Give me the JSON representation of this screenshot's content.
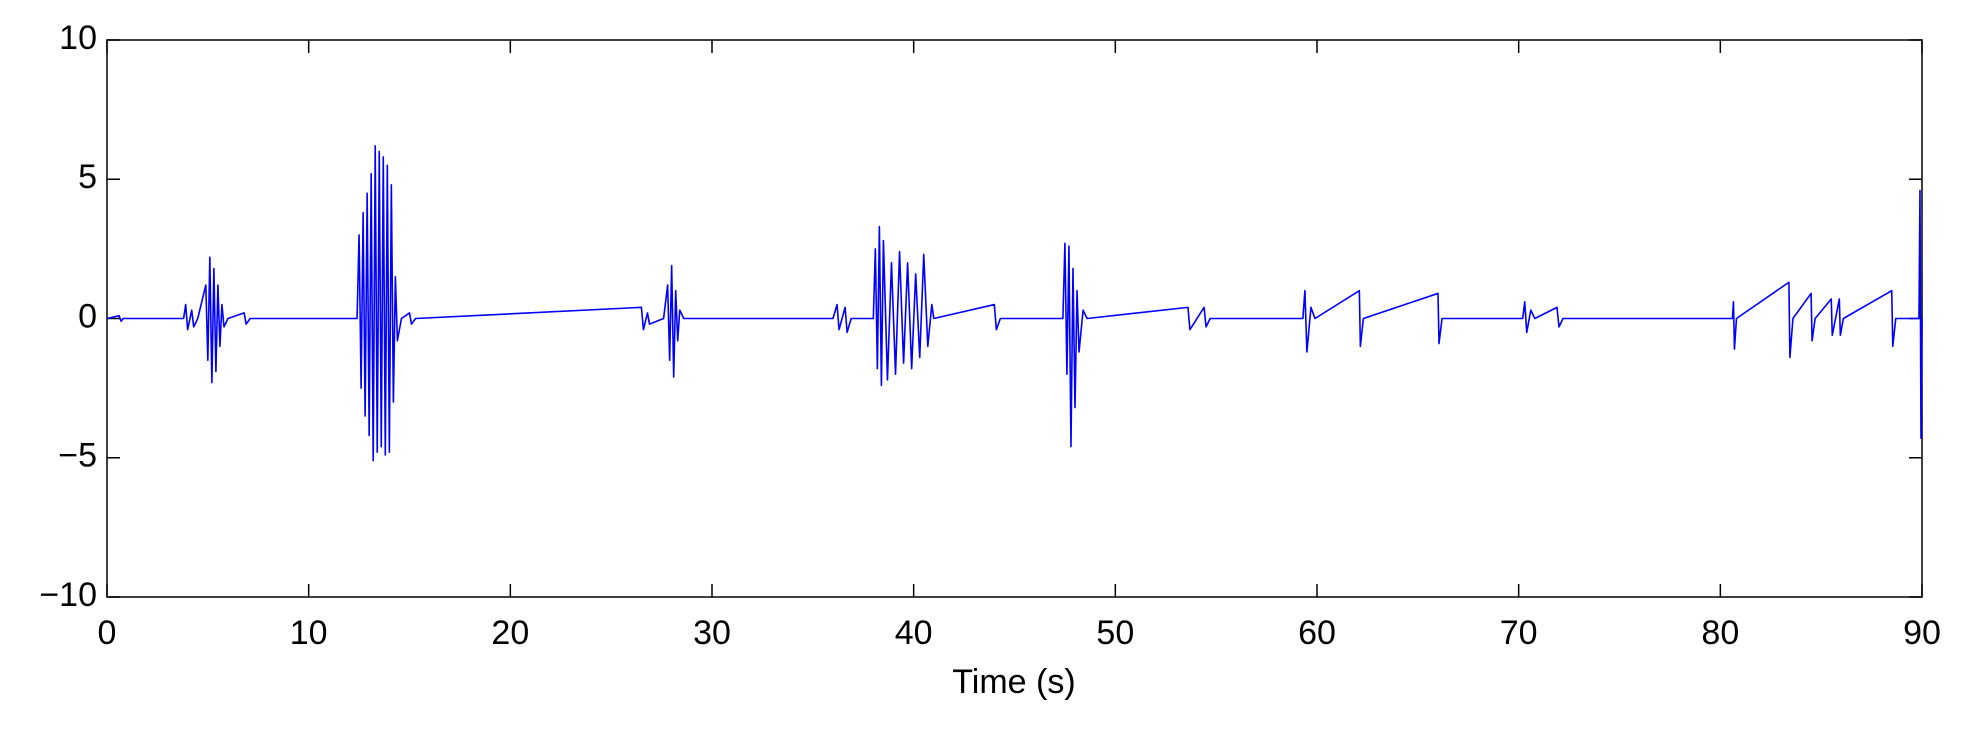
{
  "chart_data": {
    "type": "line",
    "x_label": "Time (s)",
    "color": "#0000ff",
    "xlim": [
      0,
      90
    ],
    "xticks": [
      0,
      10,
      20,
      30,
      40,
      50,
      60,
      70,
      80,
      90
    ],
    "ylim": [
      -10,
      10
    ],
    "yticks": [
      {
        "value": -10,
        "label": "−10"
      },
      {
        "value": -5,
        "label": "−5"
      },
      0,
      5,
      10
    ],
    "grid": false,
    "x": [
      0,
      0.6,
      0.7,
      0.8,
      3.8,
      3.9,
      4.0,
      4.2,
      4.3,
      4.5,
      4.9,
      5.0,
      5.1,
      5.2,
      5.3,
      5.4,
      5.5,
      5.6,
      5.7,
      5.8,
      6.0,
      6.8,
      6.9,
      7.1,
      12.4,
      12.5,
      12.6,
      12.7,
      12.8,
      12.9,
      13.0,
      13.1,
      13.2,
      13.3,
      13.4,
      13.5,
      13.6,
      13.7,
      13.8,
      13.9,
      14.0,
      14.1,
      14.2,
      14.3,
      14.4,
      14.6,
      15.0,
      15.1,
      15.3,
      26.5,
      26.6,
      26.8,
      26.9,
      27.6,
      27.8,
      27.9,
      28.0,
      28.1,
      28.2,
      28.3,
      28.4,
      28.6,
      36.0,
      36.2,
      36.3,
      36.6,
      36.7,
      36.9,
      38.0,
      38.1,
      38.2,
      38.3,
      38.4,
      38.5,
      38.7,
      38.9,
      39.1,
      39.3,
      39.5,
      39.7,
      39.9,
      40.1,
      40.3,
      40.5,
      40.7,
      40.9,
      41.0,
      44.0,
      44.1,
      44.3,
      47.4,
      47.5,
      47.6,
      47.7,
      47.8,
      47.9,
      48.0,
      48.1,
      48.2,
      48.4,
      48.6,
      53.6,
      53.7,
      54.4,
      54.5,
      54.7,
      59.3,
      59.4,
      59.5,
      59.7,
      59.9,
      62.1,
      62.15,
      62.3,
      66.0,
      66.05,
      66.2,
      70.2,
      70.3,
      70.4,
      70.6,
      70.8,
      71.9,
      72.0,
      72.2,
      80.6,
      80.65,
      80.7,
      80.8,
      83.4,
      83.45,
      83.6,
      84.5,
      84.55,
      84.7,
      85.5,
      85.55,
      85.9,
      85.95,
      86.1,
      88.5,
      88.55,
      88.7,
      89.85,
      89.9,
      89.95,
      90.0
    ],
    "values": [
      0,
      0.1,
      -0.1,
      0,
      0,
      0.5,
      -0.4,
      0.3,
      -0.3,
      0,
      1.2,
      -1.5,
      2.2,
      -2.3,
      1.8,
      -1.9,
      1.2,
      -1.0,
      0.5,
      -0.3,
      0,
      0.2,
      -0.2,
      0,
      0,
      3.0,
      -2.5,
      3.8,
      -3.5,
      4.5,
      -4.2,
      5.2,
      -5.1,
      6.2,
      -4.8,
      6.0,
      -4.6,
      5.8,
      -4.9,
      5.5,
      -4.8,
      4.8,
      -3.0,
      1.5,
      -0.8,
      0,
      0.2,
      -0.2,
      0,
      0.4,
      -0.4,
      0.2,
      -0.2,
      0,
      1.2,
      -1.5,
      1.9,
      -2.1,
      1.0,
      -0.8,
      0.3,
      0,
      0,
      0.5,
      -0.4,
      0.4,
      -0.5,
      0,
      0,
      2.5,
      -1.8,
      3.3,
      -2.4,
      2.8,
      -2.2,
      2.0,
      -2.0,
      2.4,
      -1.6,
      2.0,
      -1.8,
      1.6,
      -1.4,
      2.3,
      -1.0,
      0.5,
      0,
      0.5,
      -0.4,
      0,
      0,
      2.7,
      -2.0,
      2.6,
      -4.6,
      1.8,
      -3.2,
      1.0,
      -1.2,
      0.3,
      0,
      0.4,
      -0.4,
      0.4,
      -0.3,
      0,
      0,
      1.0,
      -1.2,
      0.4,
      0,
      1.0,
      -1.0,
      0,
      0.9,
      -0.9,
      0,
      0,
      0.6,
      -0.5,
      0.3,
      0,
      0.4,
      -0.3,
      0,
      0,
      0.6,
      -1.1,
      0,
      1.3,
      -1.4,
      0,
      0.9,
      -0.8,
      0,
      0.7,
      -0.6,
      0.7,
      -0.6,
      0,
      1.0,
      -1.0,
      0,
      0,
      4.6,
      -4.3,
      0
    ]
  }
}
